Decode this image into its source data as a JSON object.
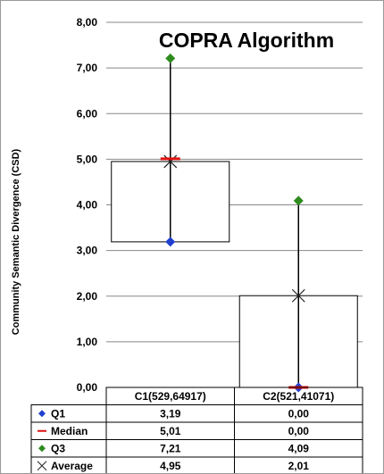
{
  "chart_data": {
    "type": "box",
    "title": "COPRA Algorithm",
    "ylabel": "Community Semantic Divergence (CSD)",
    "ylim": [
      0,
      8
    ],
    "yticks": [
      "0,00",
      "1,00",
      "2,00",
      "3,00",
      "4,00",
      "5,00",
      "6,00",
      "7,00",
      "8,00"
    ],
    "grid": true,
    "categories": [
      "C1(529,64917)",
      "C2(521,41071)"
    ],
    "series": [
      {
        "name": "Q1",
        "marker": "diamond",
        "color": "#1f3fcf",
        "values": [
          3.19,
          0.0
        ],
        "labels": [
          "3,19",
          "0,00"
        ]
      },
      {
        "name": "Median",
        "marker": "dash",
        "color": "#e01010",
        "values": [
          5.01,
          0.0
        ],
        "labels": [
          "5,01",
          "0,00"
        ]
      },
      {
        "name": "Q3",
        "marker": "diamond",
        "color": "#2e8b1e",
        "values": [
          7.21,
          4.09
        ],
        "labels": [
          "7,21",
          "4,09"
        ]
      },
      {
        "name": "Average",
        "marker": "x",
        "color": "#222222",
        "values": [
          4.95,
          2.01
        ],
        "labels": [
          "4,95",
          "2,01"
        ]
      }
    ]
  }
}
